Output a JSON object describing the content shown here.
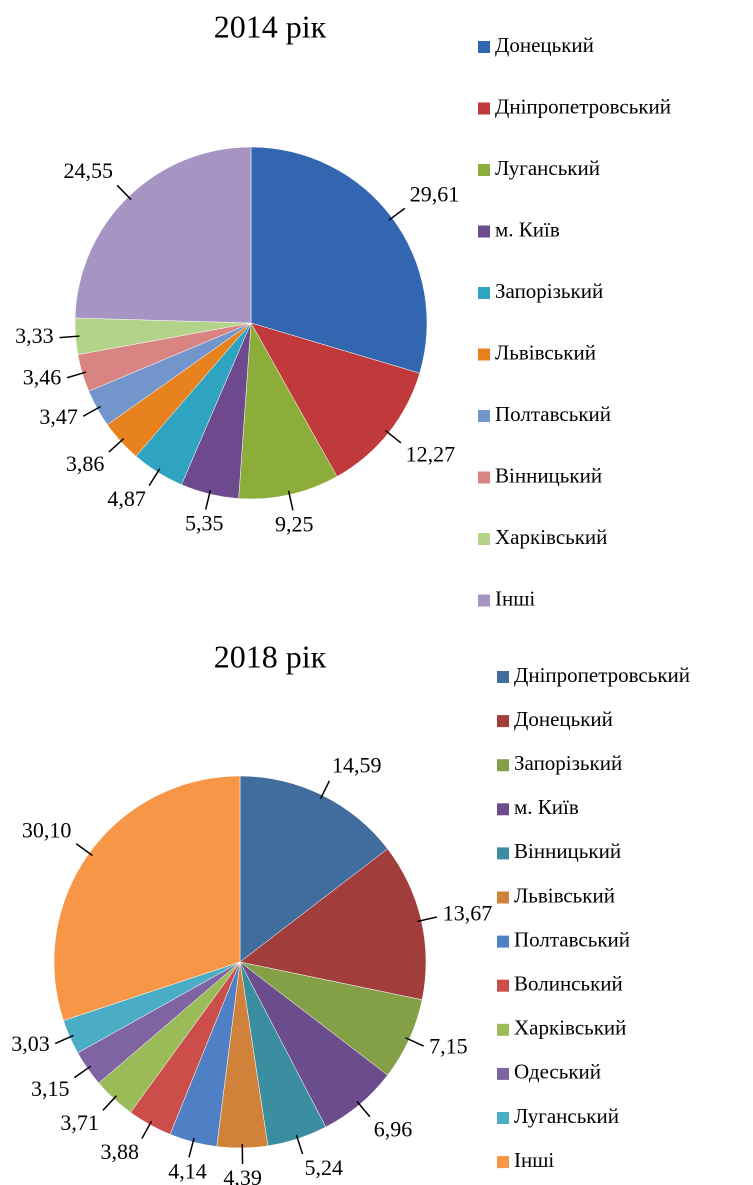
{
  "chart_data": [
    {
      "type": "pie",
      "title": "2014 рік",
      "legend": "right",
      "categories": [
        "Донецький",
        "Дніпропетровський",
        "Луганський",
        "м. Київ",
        "Запорізький",
        "Львівський",
        "Полтавський",
        "Вінницький",
        "Харківський",
        "Інші"
      ],
      "values": [
        29.61,
        12.27,
        9.25,
        5.35,
        4.87,
        3.86,
        3.47,
        3.46,
        3.33,
        24.55
      ],
      "value_labels": [
        "29,61",
        "12,27",
        "9,25",
        "5,35",
        "4,87",
        "3,86",
        "3,47",
        "3,46",
        "3,33",
        "24,55"
      ],
      "colors": [
        "#3366b0",
        "#c0393b",
        "#8cad3a",
        "#6d4a8e",
        "#2fa4c0",
        "#e8821f",
        "#7295cc",
        "#d98483",
        "#b4d38a",
        "#a695c2"
      ]
    },
    {
      "type": "pie",
      "title": "2018 рік",
      "legend": "right",
      "categories": [
        "Дніпропетровський",
        "Донецький",
        "Запорізький",
        "м. Київ",
        "Вінницький",
        "Львівський",
        "Полтавський",
        "Волинський",
        "Харківський",
        "Одеський",
        "Луганський",
        "Інші"
      ],
      "values": [
        14.59,
        13.67,
        7.15,
        6.96,
        5.24,
        4.39,
        4.14,
        3.88,
        3.71,
        3.15,
        3.03,
        30.1
      ],
      "value_labels": [
        "14,59",
        "13,67",
        "7,15",
        "6,96",
        "5,24",
        "4,39",
        "4,14",
        "3,88",
        "3,71",
        "3,15",
        "3,03",
        "30,10"
      ],
      "colors": [
        "#416c9e",
        "#a13d3a",
        "#84a046",
        "#6b4c8c",
        "#3b8ea0",
        "#d0823b",
        "#4f7fc4",
        "#cc4e4b",
        "#9bbb58",
        "#8064a2",
        "#4bacc6",
        "#f79646"
      ]
    }
  ]
}
